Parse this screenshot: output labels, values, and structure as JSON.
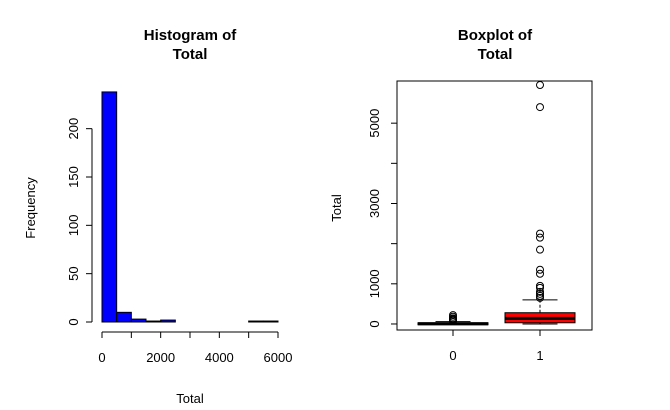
{
  "chart_data": [
    {
      "type": "bar",
      "subtype": "histogram",
      "title_lines": [
        "Histogram of",
        "Total"
      ],
      "xlabel": "Total",
      "ylabel": "Frequency",
      "bin_width": 500,
      "bins": [
        {
          "from": 0,
          "to": 500,
          "count": 238
        },
        {
          "from": 500,
          "to": 1000,
          "count": 10
        },
        {
          "from": 1000,
          "to": 1500,
          "count": 3
        },
        {
          "from": 1500,
          "to": 2000,
          "count": 1
        },
        {
          "from": 2000,
          "to": 2500,
          "count": 2
        },
        {
          "from": 2500,
          "to": 3000,
          "count": 0
        },
        {
          "from": 3000,
          "to": 3500,
          "count": 0
        },
        {
          "from": 3500,
          "to": 4000,
          "count": 0
        },
        {
          "from": 4000,
          "to": 4500,
          "count": 0
        },
        {
          "from": 4500,
          "to": 5000,
          "count": 0
        },
        {
          "from": 5000,
          "to": 5500,
          "count": 1
        },
        {
          "from": 5500,
          "to": 6000,
          "count": 1
        }
      ],
      "xlim": [
        0,
        6000
      ],
      "ylim": [
        0,
        240
      ],
      "xticks": [
        0,
        2000,
        4000,
        6000
      ],
      "xminorticks": [
        1000,
        3000,
        5000
      ],
      "yticks": [
        0,
        50,
        100,
        150,
        200
      ],
      "bar_color": "#0000ff",
      "grid": false
    },
    {
      "type": "boxplot",
      "title_lines": [
        "Boxplot of",
        "Total"
      ],
      "ylabel": "Total",
      "ylim": [
        -150,
        6050
      ],
      "yticks": [
        0,
        1000,
        3000,
        5000
      ],
      "yminorticks": [
        2000,
        4000
      ],
      "categories": [
        "0",
        "1"
      ],
      "boxes": [
        {
          "category": "0",
          "color": "#000000",
          "q1": 0,
          "median": 5,
          "q3": 30,
          "whisker_low": 0,
          "whisker_high": 60,
          "outliers": [
            80,
            100,
            120,
            140,
            180,
            220
          ]
        },
        {
          "category": "1",
          "color": "#ff0000",
          "q1": 30,
          "median": 140,
          "q3": 280,
          "whisker_low": 0,
          "whisker_high": 600,
          "outliers": [
            650,
            700,
            750,
            800,
            900,
            950,
            1250,
            1350,
            1850,
            2150,
            2250,
            5400,
            5950
          ]
        }
      ],
      "grid": false
    }
  ]
}
